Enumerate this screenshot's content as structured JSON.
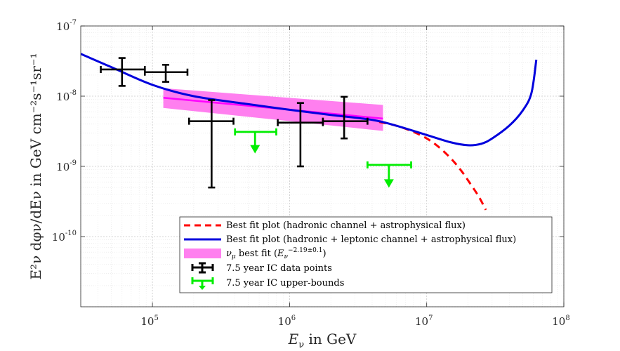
{
  "chart_data": {
    "type": "line",
    "title": "",
    "x_scale": "log",
    "y_scale": "log",
    "xlim": [
      30000,
      100000000
    ],
    "ylim": [
      1e-11,
      1e-07
    ],
    "grid": true,
    "legend_placement": "bottom-right",
    "xlabel": {
      "main": "E",
      "sub": "ν",
      "rest": " in GeV"
    },
    "ylabel": "E²ν dφν/dEν in GeV cm⁻²s⁻¹sr⁻¹",
    "x_ticks": [
      {
        "value": 100000,
        "base": "10",
        "exp": "5"
      },
      {
        "value": 1000000,
        "base": "10",
        "exp": "6"
      },
      {
        "value": 10000000,
        "base": "10",
        "exp": "7"
      },
      {
        "value": 100000000,
        "base": "10",
        "exp": "8"
      }
    ],
    "y_ticks": [
      {
        "value": 1e-10,
        "base": "10",
        "exp": "-10"
      },
      {
        "value": 1e-09,
        "base": "10",
        "exp": "-9"
      },
      {
        "value": 1e-08,
        "base": "10",
        "exp": "-8"
      },
      {
        "value": 1e-07,
        "base": "10",
        "exp": "-7"
      }
    ],
    "series": [
      {
        "name": "Best fit plot (hadronic channel + astrophysical flux)",
        "style": "dashed",
        "color": "#ff0000",
        "x": [
          4500000,
          6000000,
          8000000,
          10000000,
          12000000,
          15000000,
          18000000,
          21000000,
          24000000,
          27000000
        ],
        "y": [
          4.3e-09,
          3.8e-09,
          3.1e-09,
          2.5e-09,
          1.95e-09,
          1.3e-09,
          8.5e-10,
          5.5e-10,
          3.7e-10,
          2.4e-10
        ]
      },
      {
        "name": "Best fit plot (hadronic + leptonic channel + astrophysical flux)",
        "style": "solid",
        "color": "#0000dd",
        "x": [
          30000,
          50000,
          100000,
          200000,
          500000,
          1000000,
          2000000,
          4000000,
          6000000,
          10000000,
          15000000,
          20000000,
          25000000,
          30000000,
          40000000,
          50000000,
          58000000,
          63000000
        ],
        "y": [
          4e-08,
          2.6e-08,
          1.45e-08,
          1e-08,
          7.7e-09,
          6.4e-09,
          5.4e-09,
          4.6e-09,
          3.8e-09,
          2.8e-09,
          2.2e-09,
          2e-09,
          2.1e-09,
          2.5e-09,
          3.8e-09,
          6.2e-09,
          1.1e-08,
          3.3e-08
        ]
      }
    ],
    "band": {
      "name": "νμ best fit (Eν^−2.19±0.1)",
      "legend_main": "ν",
      "legend_sub": "μ",
      "legend_mid": " best fit (",
      "legend_E": "E",
      "legend_Esub": "ν",
      "legend_exp": "−2.19±0.1",
      "legend_end": ")",
      "color": "#ff7fef",
      "x": [
        120000,
        4800000
      ],
      "y_low": [
        6.8e-09,
        3.2e-09
      ],
      "y_high": [
        1.3e-08,
        7.5e-09
      ],
      "central": [
        9.5e-09,
        4.8e-09
      ],
      "central_color": "#ff00ff"
    },
    "data_points": {
      "name": "7.5 year IC data points",
      "color": "#000000",
      "points": [
        {
          "x": 60000,
          "xlo": 42000,
          "xhi": 88000,
          "y": 2.4e-08,
          "ylo": 1.4e-08,
          "yhi": 3.5e-08
        },
        {
          "x": 125000,
          "xlo": 88000,
          "xhi": 180000,
          "y": 2.2e-08,
          "ylo": 1.6e-08,
          "yhi": 2.8e-08
        },
        {
          "x": 270000,
          "xlo": 185000,
          "xhi": 390000,
          "y": 4.4e-09,
          "ylo": 5e-10,
          "yhi": 8.8e-09
        },
        {
          "x": 1200000,
          "xlo": 820000,
          "xhi": 1750000,
          "y": 4.2e-09,
          "ylo": 1e-09,
          "yhi": 8e-09
        },
        {
          "x": 2500000,
          "xlo": 1750000,
          "xhi": 3700000,
          "y": 4.4e-09,
          "ylo": 2.5e-09,
          "yhi": 9.8e-09
        }
      ]
    },
    "upper_bounds": {
      "name": "7.5 year IC upper-bounds",
      "color": "#00ee00",
      "points": [
        {
          "x": 560000,
          "xlo": 400000,
          "xhi": 800000,
          "y": 3.1e-09,
          "arrow_to": 1.6e-09
        },
        {
          "x": 5300000,
          "xlo": 3700000,
          "xhi": 7700000,
          "y": 1.05e-09,
          "arrow_to": 5.2e-10
        }
      ]
    }
  }
}
